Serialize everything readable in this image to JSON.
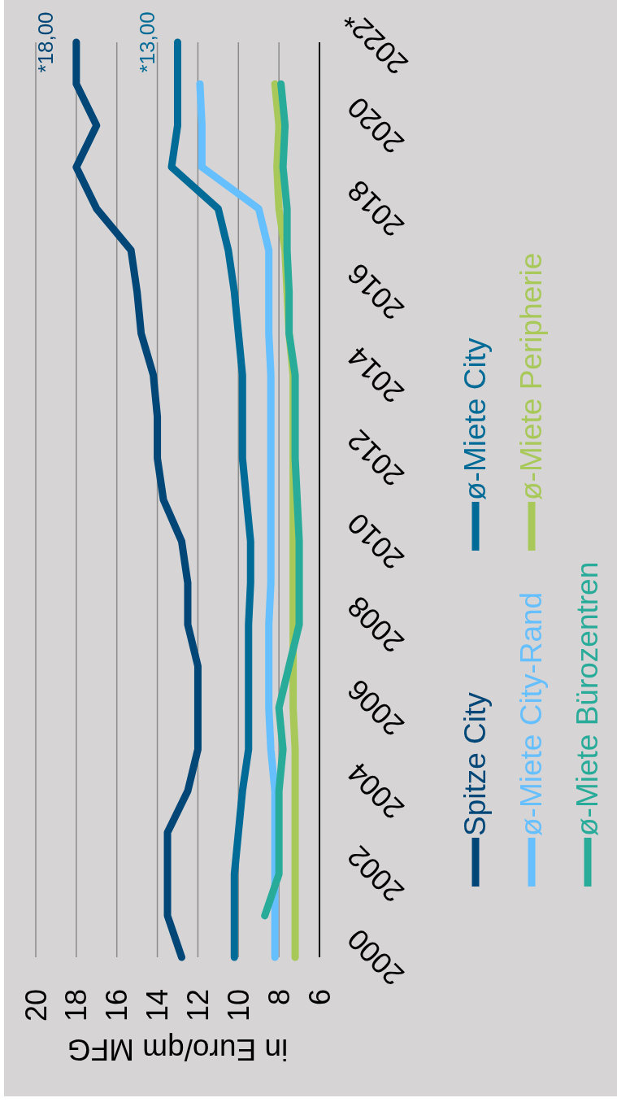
{
  "chart_data": {
    "type": "line",
    "orientation": "horizontal",
    "categories": [
      "2022*",
      null,
      "2020",
      null,
      "2018",
      null,
      "2016",
      null,
      "2014",
      null,
      "2012",
      null,
      "2010",
      null,
      "2008",
      null,
      "2006",
      null,
      "2004",
      null,
      "2002",
      null,
      "2000"
    ],
    "series": [
      {
        "name": "Spitze City",
        "color": "#004777",
        "values": [
          18.0,
          18.0,
          17.0,
          18.0,
          17.0,
          15.3,
          15.0,
          14.8,
          14.2,
          14.0,
          14.0,
          13.7,
          12.8,
          12.5,
          12.5,
          12.0,
          12.0,
          12.0,
          12.5,
          13.5,
          13.5,
          13.5,
          12.8
        ],
        "value_labels": [
          "*18,00",
          null,
          null,
          null,
          null,
          null,
          null,
          null,
          null,
          null,
          null,
          null,
          null,
          null,
          null,
          null,
          null,
          null,
          null,
          null,
          null,
          null,
          null
        ]
      },
      {
        "name": "ø-Miete City",
        "color": "#006b96",
        "values": [
          13.0,
          13.0,
          13.0,
          13.3,
          11.0,
          10.5,
          10.2,
          10.0,
          9.8,
          9.8,
          9.8,
          9.6,
          9.4,
          9.4,
          9.5,
          9.5,
          9.5,
          9.5,
          9.8,
          10.0,
          10.2,
          10.2,
          10.2
        ],
        "value_labels": [
          "*13,00",
          null,
          null,
          null,
          null,
          null,
          null,
          null,
          null,
          null,
          null,
          null,
          null,
          null,
          null,
          null,
          null,
          null,
          null,
          null,
          null,
          null,
          null
        ]
      },
      {
        "name": "ø-Miete City-Rand",
        "color": "#66bfff",
        "values": [
          null,
          11.9,
          11.8,
          11.8,
          9.0,
          8.5,
          8.5,
          8.5,
          8.4,
          8.4,
          8.4,
          8.4,
          8.4,
          8.4,
          8.5,
          8.5,
          8.5,
          8.4,
          8.2,
          8.2,
          8.2,
          8.2,
          8.2
        ]
      },
      {
        "name": "ø-Miete Peripherie",
        "color": "#a8c95a",
        "values": [
          null,
          8.2,
          8.0,
          8.1,
          8.0,
          7.7,
          7.6,
          7.5,
          7.3,
          7.3,
          7.3,
          7.3,
          7.3,
          7.3,
          7.3,
          7.3,
          7.3,
          7.2,
          7.2,
          7.2,
          7.2,
          7.2,
          7.2
        ]
      },
      {
        "name": "ø-Miete Bürozentren",
        "color": "#29ab99",
        "values": [
          null,
          7.9,
          7.7,
          7.8,
          7.6,
          7.6,
          7.5,
          7.5,
          7.2,
          7.2,
          7.2,
          7.1,
          7.0,
          7.0,
          7.0,
          7.5,
          8.0,
          7.8,
          8.0,
          8.0,
          8.0,
          8.7,
          null
        ]
      }
    ],
    "xlabel": "in Euro/qm MFG",
    "xlim": [
      20,
      6
    ],
    "xticks": [
      20,
      18,
      16,
      14,
      12,
      10,
      8,
      6
    ],
    "grid": "x",
    "legend": "right"
  }
}
